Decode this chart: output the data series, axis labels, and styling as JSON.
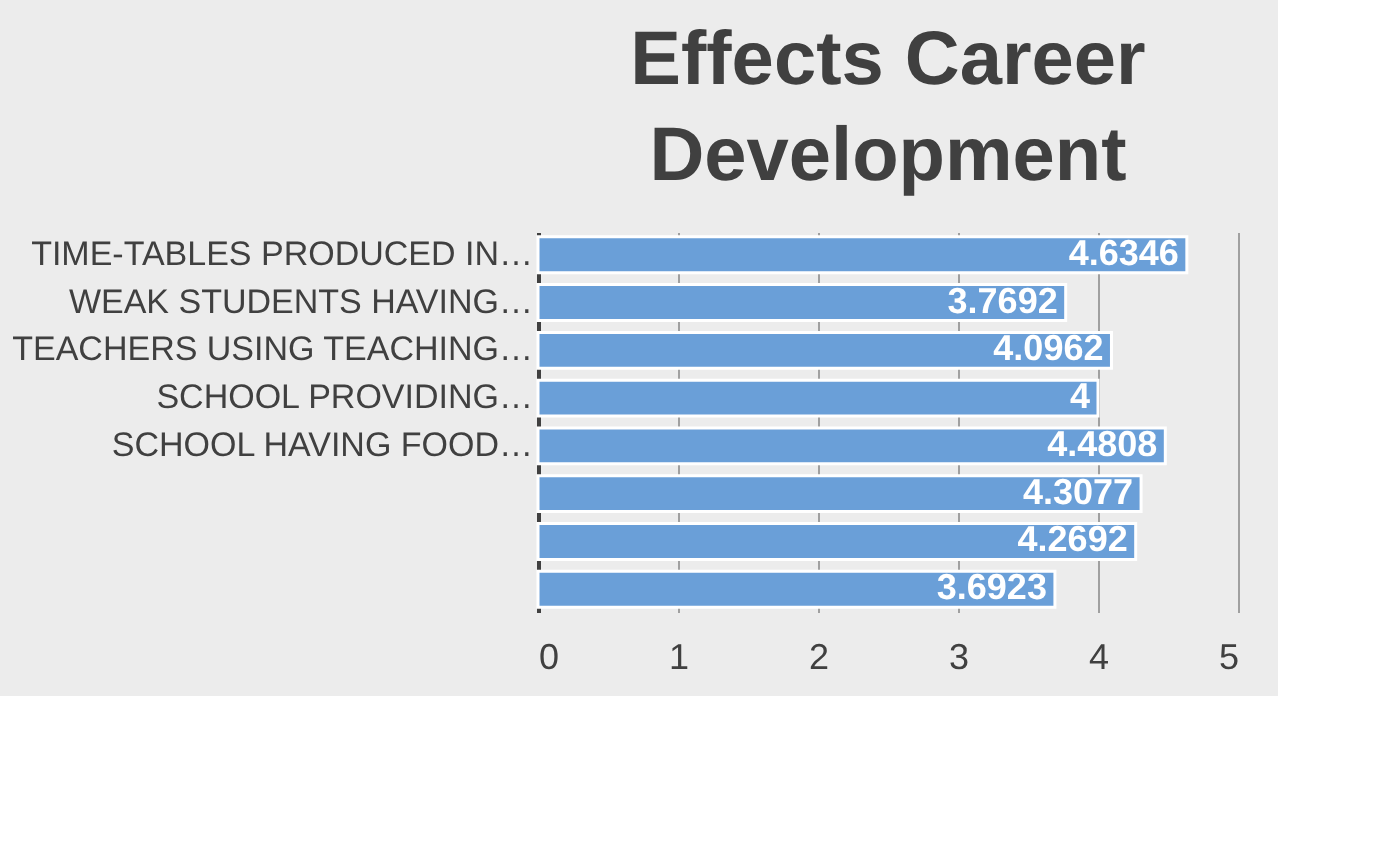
{
  "chart_data": {
    "type": "bar",
    "orientation": "horizontal",
    "title": "Effects Career Development",
    "categories": [
      "TIME-TABLES PRODUCED IN…",
      "WEAK STUDENTS HAVING…",
      "TEACHERS USING TEACHING…",
      "SCHOOL PROVIDING…",
      "SCHOOL HAVING FOOD…",
      null,
      null,
      null
    ],
    "values": [
      4.6346,
      3.7692,
      4.0962,
      4,
      4.4808,
      4.3077,
      4.2692,
      3.6923
    ],
    "color": "#6a9fd8",
    "xlim": [
      0,
      5
    ],
    "xticks": [
      0,
      1,
      2,
      3,
      4,
      5
    ],
    "grid": "x",
    "data_labels": true
  }
}
